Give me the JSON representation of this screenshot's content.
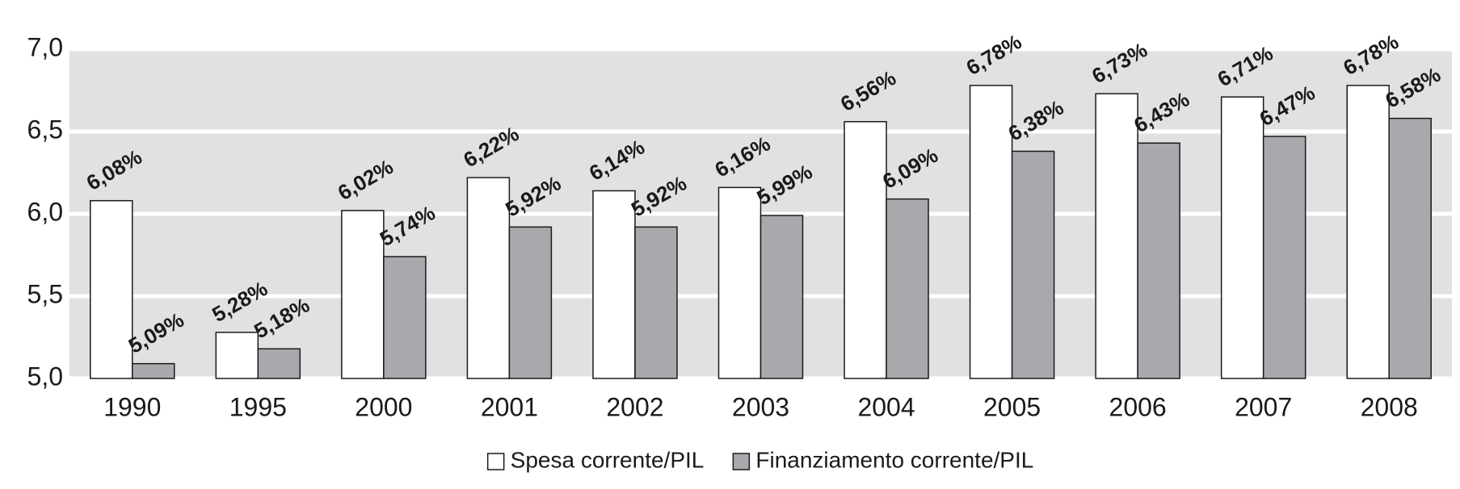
{
  "chart_data": {
    "type": "bar",
    "categories": [
      "1990",
      "1995",
      "2000",
      "2001",
      "2002",
      "2003",
      "2004",
      "2005",
      "2006",
      "2007",
      "2008"
    ],
    "series": [
      {
        "name": "Spesa corrente/PIL",
        "color": "#ffffff",
        "values": [
          6.08,
          5.28,
          6.02,
          6.22,
          6.14,
          6.16,
          6.56,
          6.78,
          6.73,
          6.71,
          6.78
        ],
        "value_labels": [
          "6,08%",
          "5,28%",
          "6,02%",
          "6,22%",
          "6,14%",
          "6,16%",
          "6,56%",
          "6,78%",
          "6,73%",
          "6,71%",
          "6,78%"
        ]
      },
      {
        "name": "Finanziamento corrente/PIL",
        "color": "#a7a9ac",
        "values": [
          5.09,
          5.18,
          5.74,
          5.92,
          5.92,
          5.99,
          6.09,
          6.38,
          6.43,
          6.47,
          6.58
        ],
        "value_labels": [
          "5,09%",
          "5,18%",
          "5,74%",
          "5,92%",
          "5,92%",
          "5,99%",
          "6,09%",
          "6,38%",
          "6,43%",
          "6,47%",
          "6,58%"
        ]
      }
    ],
    "ylim": [
      5,
      7
    ],
    "yticks": [
      {
        "value": 5,
        "label": "5,0"
      },
      {
        "value": 5.5,
        "label": "5,5"
      },
      {
        "value": 6,
        "label": "6,0"
      },
      {
        "value": 6.5,
        "label": "6,5"
      },
      {
        "value": 7,
        "label": "7,0"
      }
    ],
    "grid": true
  }
}
